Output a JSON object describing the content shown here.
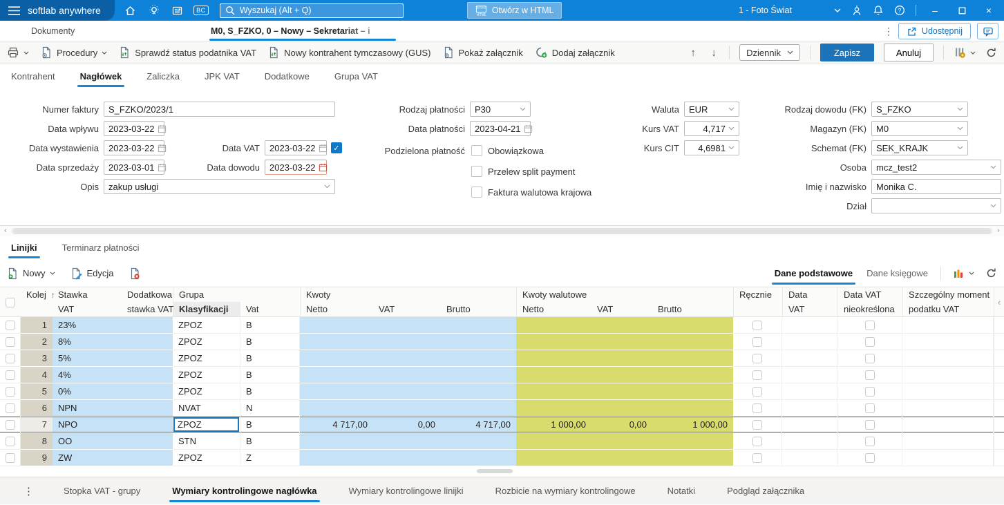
{
  "colors": {
    "topbar": "#0e82d9",
    "logo_bg": "#0b5fa5",
    "accent": "#1486d8",
    "save_button": "#1b74ba",
    "cell_blue": "#c6e2f6",
    "cell_green": "#d8dc6c",
    "row_number_col": "#d8d4c6",
    "selection_border": "#2f6f93"
  },
  "topbar": {
    "logo": "softlab anywhere",
    "bc": "BC",
    "search_placeholder": "Wyszukaj (Alt + Q)",
    "open_html": "Otwórz w HTML",
    "html_icon_label": "HTML",
    "company": "1 - Foto Świat",
    "minimize": "–",
    "close": "×"
  },
  "tabbar": {
    "documents": "Dokumenty",
    "active": "M0, S_FZKO, 0 – Nowy – Sekretariat – i",
    "share": "Udostępnij"
  },
  "toolbar": {
    "procedures": "Procedury",
    "check_vat": "Sprawdź status podatnika VAT",
    "new_contractor": "Nowy kontrahent tymczasowy (GUS)",
    "show_attachment": "Pokaż załącznik",
    "add_attachment": "Dodaj załącznik",
    "up": "↑",
    "down": "↓",
    "journal": "Dziennik",
    "save": "Zapisz",
    "cancel": "Anuluj"
  },
  "nav_tabs": [
    "Kontrahent",
    "Nagłówek",
    "Zaliczka",
    "JPK VAT",
    "Dodatkowe",
    "Grupa VAT"
  ],
  "form": {
    "invoice_number": {
      "label": "Numer faktury",
      "value": "S_FZKO/2023/1"
    },
    "receipt_date": {
      "label": "Data wpływu",
      "value": "2023-03-22"
    },
    "issue_date": {
      "label": "Data wystawienia",
      "value": "2023-03-22"
    },
    "vat_date": {
      "label": "Data VAT",
      "value": "2023-03-22"
    },
    "sale_date": {
      "label": "Data sprzedaży",
      "value": "2023-03-01"
    },
    "document_date": {
      "label": "Data dowodu",
      "value": "2023-03-22"
    },
    "description": {
      "label": "Opis",
      "value": "zakup usługi"
    },
    "payment_type": {
      "label": "Rodzaj płatności",
      "value": "P30"
    },
    "payment_date": {
      "label": "Data płatności",
      "value": "2023-04-21"
    },
    "split_payment": {
      "label": "Podzielona płatność",
      "mandatory": "Obowiązkowa",
      "transfer": "Przelew split payment",
      "domestic_fx": "Faktura walutowa krajowa"
    },
    "currency": {
      "label": "Waluta",
      "value": "EUR"
    },
    "vat_rate": {
      "label": "Kurs VAT",
      "value": "4,717"
    },
    "cit_rate": {
      "label": "Kurs CIT",
      "value": "4,6981"
    },
    "doc_type_fk": {
      "label": "Rodzaj dowodu (FK)",
      "value": "S_FZKO"
    },
    "warehouse_fk": {
      "label": "Magazyn (FK)",
      "value": "M0"
    },
    "schema_fk": {
      "label": "Schemat (FK)",
      "value": "SEK_KRAJK"
    },
    "person": {
      "label": "Osoba",
      "value": "mcz_test2"
    },
    "full_name": {
      "label": "Imię i nazwisko",
      "value": "Monika C."
    },
    "department": {
      "label": "Dział",
      "value": ""
    }
  },
  "lines": {
    "tabs": [
      "Linijki",
      "Terminarz płatności"
    ],
    "new": "Nowy",
    "edit": "Edycja",
    "right_tabs": [
      "Dane podstawowe",
      "Dane księgowe"
    ]
  },
  "table": {
    "headers": {
      "kolej": "Kolej",
      "stawka1": "Stawka",
      "stawka2": "VAT",
      "dod1": "Dodatkowa",
      "dod2": "stawka VAT",
      "grupa": "Grupa",
      "klasyfikacji": "Klasyfikacji",
      "vat": "Vat",
      "kwoty": "Kwoty",
      "netto": "Netto",
      "vat2": "VAT",
      "brutto": "Brutto",
      "kwoty_walutowe": "Kwoty walutowe",
      "recznie": "Ręcznie",
      "data1": "Data",
      "data2": "VAT",
      "nieokr1": "Data VAT",
      "nieokr2": "nieokreślona",
      "szcz1": "Szczególny moment",
      "szcz2": "podatku VAT"
    },
    "rows": [
      {
        "kolej": "1",
        "stawka": "23%",
        "klasyfikacja": "ZPOZ",
        "vat": "B"
      },
      {
        "kolej": "2",
        "stawka": "8%",
        "klasyfikacja": "ZPOZ",
        "vat": "B"
      },
      {
        "kolej": "3",
        "stawka": "5%",
        "klasyfikacja": "ZPOZ",
        "vat": "B"
      },
      {
        "kolej": "4",
        "stawka": "4%",
        "klasyfikacja": "ZPOZ",
        "vat": "B"
      },
      {
        "kolej": "5",
        "stawka": "0%",
        "klasyfikacja": "ZPOZ",
        "vat": "B"
      },
      {
        "kolej": "6",
        "stawka": "NPN",
        "klasyfikacja": "NVAT",
        "vat": "N"
      },
      {
        "kolej": "7",
        "stawka": "NPO",
        "klasyfikacja": "ZPOZ",
        "vat": "B",
        "netto": "4 717,00",
        "vat_kwota": "0,00",
        "brutto": "4 717,00",
        "netto_wal": "1 000,00",
        "vat_wal": "0,00",
        "brutto_wal": "1 000,00",
        "selected": true
      },
      {
        "kolej": "8",
        "stawka": "OO",
        "klasyfikacja": "STN",
        "vat": "B"
      },
      {
        "kolej": "9",
        "stawka": "ZW",
        "klasyfikacja": "ZPOZ",
        "vat": "Z"
      }
    ]
  },
  "bottom_tabs": [
    "Stopka VAT - grupy",
    "Wymiary kontrolingowe nagłówka",
    "Wymiary kontrolingowe linijki",
    "Rozbicie na wymiary kontrolingowe",
    "Notatki",
    "Podgląd załącznika"
  ]
}
